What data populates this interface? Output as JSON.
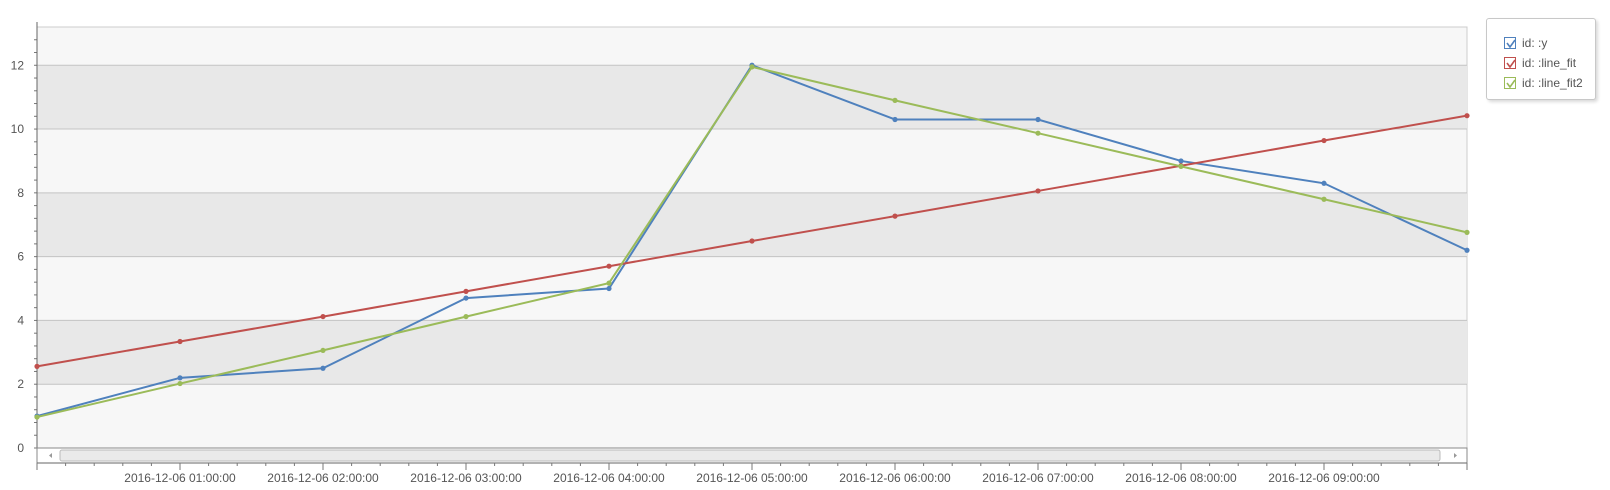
{
  "chart_data": {
    "type": "line",
    "x": [
      "2016-12-06 00:00:00",
      "2016-12-06 01:00:00",
      "2016-12-06 02:00:00",
      "2016-12-06 03:00:00",
      "2016-12-06 04:00:00",
      "2016-12-06 05:00:00",
      "2016-12-06 06:00:00",
      "2016-12-06 07:00:00",
      "2016-12-06 08:00:00",
      "2016-12-06 09:00:00",
      "2016-12-06 10:00:00"
    ],
    "x_tick_labels": [
      "2016-12-06 01:00:00",
      "2016-12-06 02:00:00",
      "2016-12-06 03:00:00",
      "2016-12-06 04:00:00",
      "2016-12-06 05:00:00",
      "2016-12-06 06:00:00",
      "2016-12-06 07:00:00",
      "2016-12-06 08:00:00",
      "2016-12-06 09:00:00"
    ],
    "y_ticks": [
      0,
      2,
      4,
      6,
      8,
      10,
      12
    ],
    "ylim": [
      0,
      13.2
    ],
    "grid": true,
    "legend_position": "top-right, outside",
    "series": [
      {
        "name": "id: :y",
        "color": "#4f81bd",
        "values": [
          1.0,
          2.2,
          2.5,
          4.7,
          5.0,
          12.0,
          10.3,
          10.3,
          9.0,
          8.3,
          6.2
        ]
      },
      {
        "name": "id: :line_fit",
        "color": "#c0504d",
        "values": [
          2.56,
          3.34,
          4.12,
          4.91,
          5.7,
          6.49,
          7.27,
          8.06,
          8.85,
          9.64,
          10.42
        ]
      },
      {
        "name": "id: :line_fit2",
        "color": "#9bbb59",
        "values": [
          0.97,
          2.02,
          3.06,
          4.12,
          5.17,
          11.95,
          10.9,
          9.87,
          8.83,
          7.8,
          6.76
        ]
      }
    ]
  }
}
